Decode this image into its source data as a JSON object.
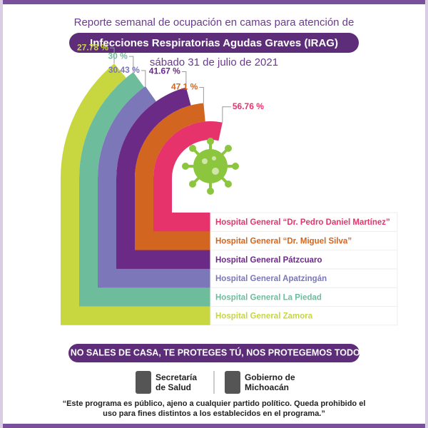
{
  "chart_data": {
    "type": "radial_bar",
    "title": "Reporte semanal de ocupación en camas para atención de",
    "subtitle": "Infecciones Respiratorias Agudas Graves (IRAG)",
    "date": "sábado 31 de julio de 2021",
    "categories": [
      "Hospital General “Dr. Pedro Daniel Martínez”",
      "Hospital General “Dr. Miguel Silva”",
      "Hospital General Pátzcuaro",
      "Hospital General Apatzingán",
      "Hospital General La Piedad",
      "Hospital General Zamora"
    ],
    "values": [
      56.76,
      47.1,
      41.67,
      30.43,
      30,
      27.78
    ],
    "value_labels": [
      "56.76 %",
      "47.1 %",
      "41.67 %",
      "30.43 %",
      "30 %",
      "27.78 %"
    ],
    "colors": [
      "#e7336c",
      "#d2651f",
      "#6c2a87",
      "#7b77b8",
      "#6dbd9d",
      "#c8d63f"
    ]
  },
  "footer": {
    "slogan": "SI NO SALES DE CASA, TE PROTEGES TÚ, NOS PROTEGEMOS TODOS.",
    "logos": [
      [
        "Secretaría",
        "de Salud"
      ],
      [
        "Gobierno de",
        "Michoacán"
      ]
    ],
    "disclaimer": [
      "“Este programa es público, ajeno a cualquier partido político. Queda prohibido el",
      "uso para fines distintos a los establecidos en el programa.”"
    ]
  }
}
